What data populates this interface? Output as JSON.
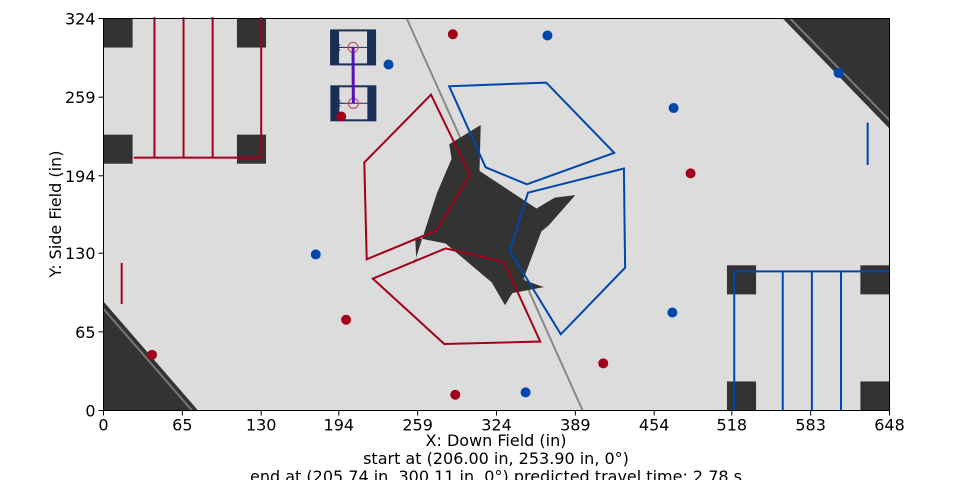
{
  "chart_data": {
    "type": "scatter",
    "xlabel": "X: Down Field (in)",
    "ylabel": "Y: Side Field (in)",
    "xlim": [
      0,
      648
    ],
    "ylim": [
      0,
      324
    ],
    "x_ticks": [
      0,
      65,
      130,
      194,
      259,
      324,
      389,
      454,
      518,
      583,
      648
    ],
    "y_ticks": [
      0,
      65,
      130,
      194,
      259,
      324
    ],
    "caption_lines": [
      "start at (206.00 in, 253.90 in, 0°)",
      "end at (205.74 in, 300.11 in, 0°) predicted travel time: 2.78 s"
    ],
    "robot_start": {
      "x": 206.0,
      "y": 253.9,
      "heading_deg": 0
    },
    "robot_end": {
      "x": 205.74,
      "y": 300.11,
      "heading_deg": 0
    },
    "path": {
      "color": "#5a10b8",
      "points": [
        [
          206.0,
          253.9
        ],
        [
          205.9,
          270
        ],
        [
          205.8,
          285
        ],
        [
          205.74,
          300.11
        ]
      ]
    },
    "red_balls": [
      [
        40,
        46
      ],
      [
        200,
        75
      ],
      [
        290,
        13
      ],
      [
        412,
        39
      ],
      [
        484,
        196
      ],
      [
        288,
        311
      ],
      [
        196,
        243
      ]
    ],
    "blue_balls": [
      [
        175,
        129
      ],
      [
        348,
        15
      ],
      [
        366,
        310
      ],
      [
        469,
        81
      ],
      [
        470,
        250
      ],
      [
        606,
        279
      ],
      [
        235,
        286
      ]
    ],
    "red_zones": [
      [
        [
          215,
          205
        ],
        [
          270,
          261
        ],
        [
          302,
          195
        ],
        [
          275,
          149
        ],
        [
          217,
          125
        ]
      ],
      [
        [
          222,
          109
        ],
        [
          282,
          134
        ],
        [
          330,
          123
        ],
        [
          360,
          57
        ],
        [
          281,
          55
        ]
      ]
    ],
    "blue_zones": [
      [
        [
          285,
          268
        ],
        [
          365,
          271
        ],
        [
          421,
          213
        ],
        [
          349,
          187
        ],
        [
          315,
          201
        ]
      ],
      [
        [
          350,
          180
        ],
        [
          429,
          200
        ],
        [
          430,
          118
        ],
        [
          377,
          63
        ],
        [
          335,
          132
        ]
      ]
    ],
    "red_lines": [
      [
        [
          42,
          209
        ],
        [
          42,
          325
        ]
      ],
      [
        [
          66,
          209
        ],
        [
          66,
          325
        ]
      ],
      [
        [
          90,
          209
        ],
        [
          90,
          325
        ]
      ],
      [
        [
          25,
          209
        ],
        [
          130,
          209
        ]
      ],
      [
        [
          130,
          209
        ],
        [
          130,
          325
        ]
      ],
      [
        [
          15,
          88
        ],
        [
          15,
          122
        ]
      ]
    ],
    "blue_lines": [
      [
        [
          520,
          0
        ],
        [
          520,
          115
        ]
      ],
      [
        [
          560,
          0
        ],
        [
          560,
          115
        ]
      ],
      [
        [
          584,
          0
        ],
        [
          584,
          115
        ]
      ],
      [
        [
          608,
          0
        ],
        [
          608,
          115
        ]
      ],
      [
        [
          520,
          115
        ],
        [
          648,
          115
        ]
      ],
      [
        [
          630,
          203
        ],
        [
          630,
          238
        ]
      ]
    ],
    "colors": {
      "red": "#a3001b",
      "blue": "#0047ab",
      "field": "#dcdcdc",
      "obstacle": "#333333"
    }
  }
}
